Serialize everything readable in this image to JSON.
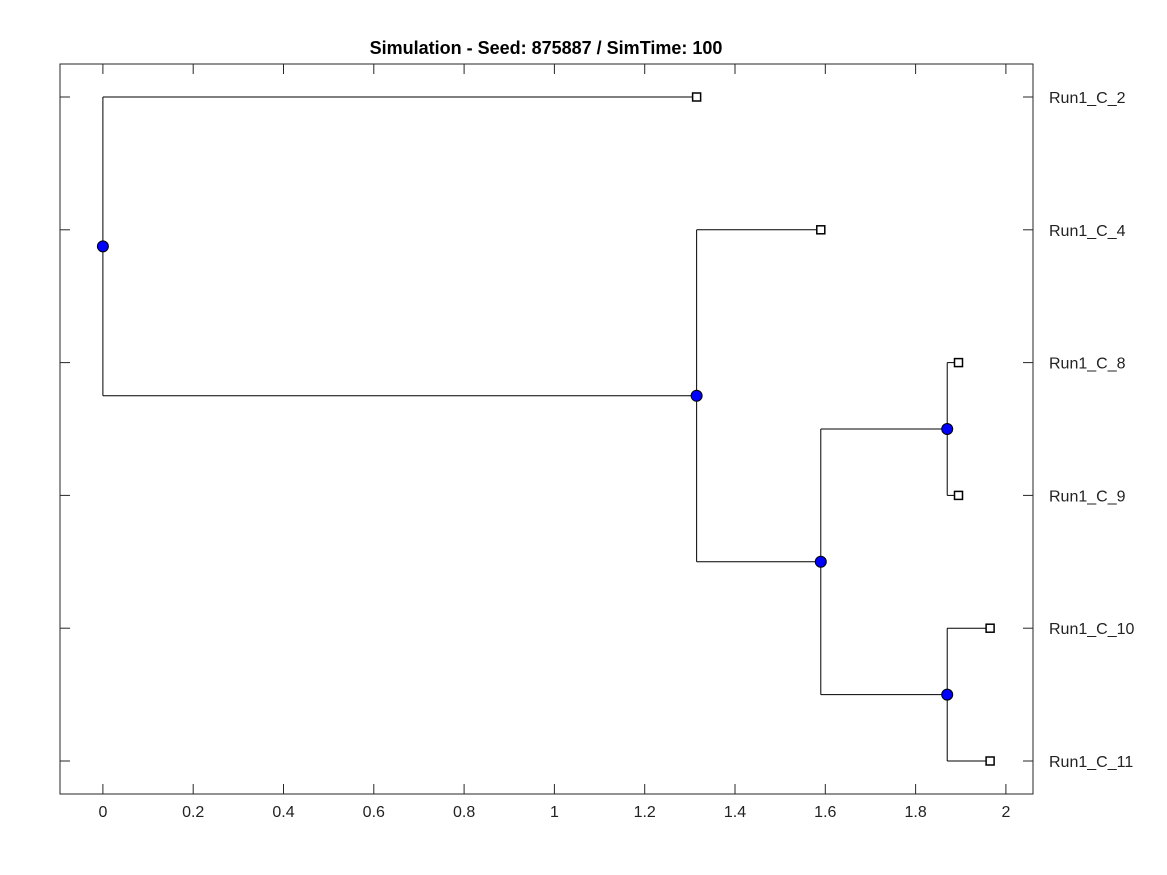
{
  "chart_data": {
    "type": "dendrogram",
    "title": "Simulation - Seed: 875887 / SimTime: 100",
    "xlabel": "",
    "ylabel": "",
    "xlim": [
      -0.095,
      2.06
    ],
    "xticks": [
      0,
      0.2,
      0.4,
      0.6,
      0.8,
      1,
      1.2,
      1.4,
      1.6,
      1.8,
      2
    ],
    "xtick_labels": [
      "0",
      "0.2",
      "0.4",
      "0.6",
      "0.8",
      "1",
      "1.2",
      "1.4",
      "1.6",
      "1.8",
      "2"
    ],
    "grid": false,
    "colors": {
      "internal_node": "#0000ff",
      "leaf_node": "#ffffff",
      "line": "#000000"
    },
    "leaves": [
      {
        "id": "Run1_C_2",
        "label": "Run1_C_2",
        "x": 1.315
      },
      {
        "id": "Run1_C_4",
        "label": "Run1_C_4",
        "x": 1.59
      },
      {
        "id": "Run1_C_8",
        "label": "Run1_C_8",
        "x": 1.895
      },
      {
        "id": "Run1_C_9",
        "label": "Run1_C_9",
        "x": 1.895
      },
      {
        "id": "Run1_C_10",
        "label": "Run1_C_10",
        "x": 1.965
      },
      {
        "id": "Run1_C_11",
        "label": "Run1_C_11",
        "x": 1.965
      }
    ],
    "internal_nodes": [
      {
        "id": "root",
        "x": 0.0,
        "children": [
          "Run1_C_2",
          "n1"
        ]
      },
      {
        "id": "n1",
        "x": 1.315,
        "children": [
          "Run1_C_4",
          "n2"
        ]
      },
      {
        "id": "n2",
        "x": 1.59,
        "children": [
          "n3",
          "n4"
        ]
      },
      {
        "id": "n3",
        "x": 1.87,
        "children": [
          "Run1_C_8",
          "Run1_C_9"
        ]
      },
      {
        "id": "n4",
        "x": 1.87,
        "children": [
          "Run1_C_10",
          "Run1_C_11"
        ]
      }
    ]
  }
}
